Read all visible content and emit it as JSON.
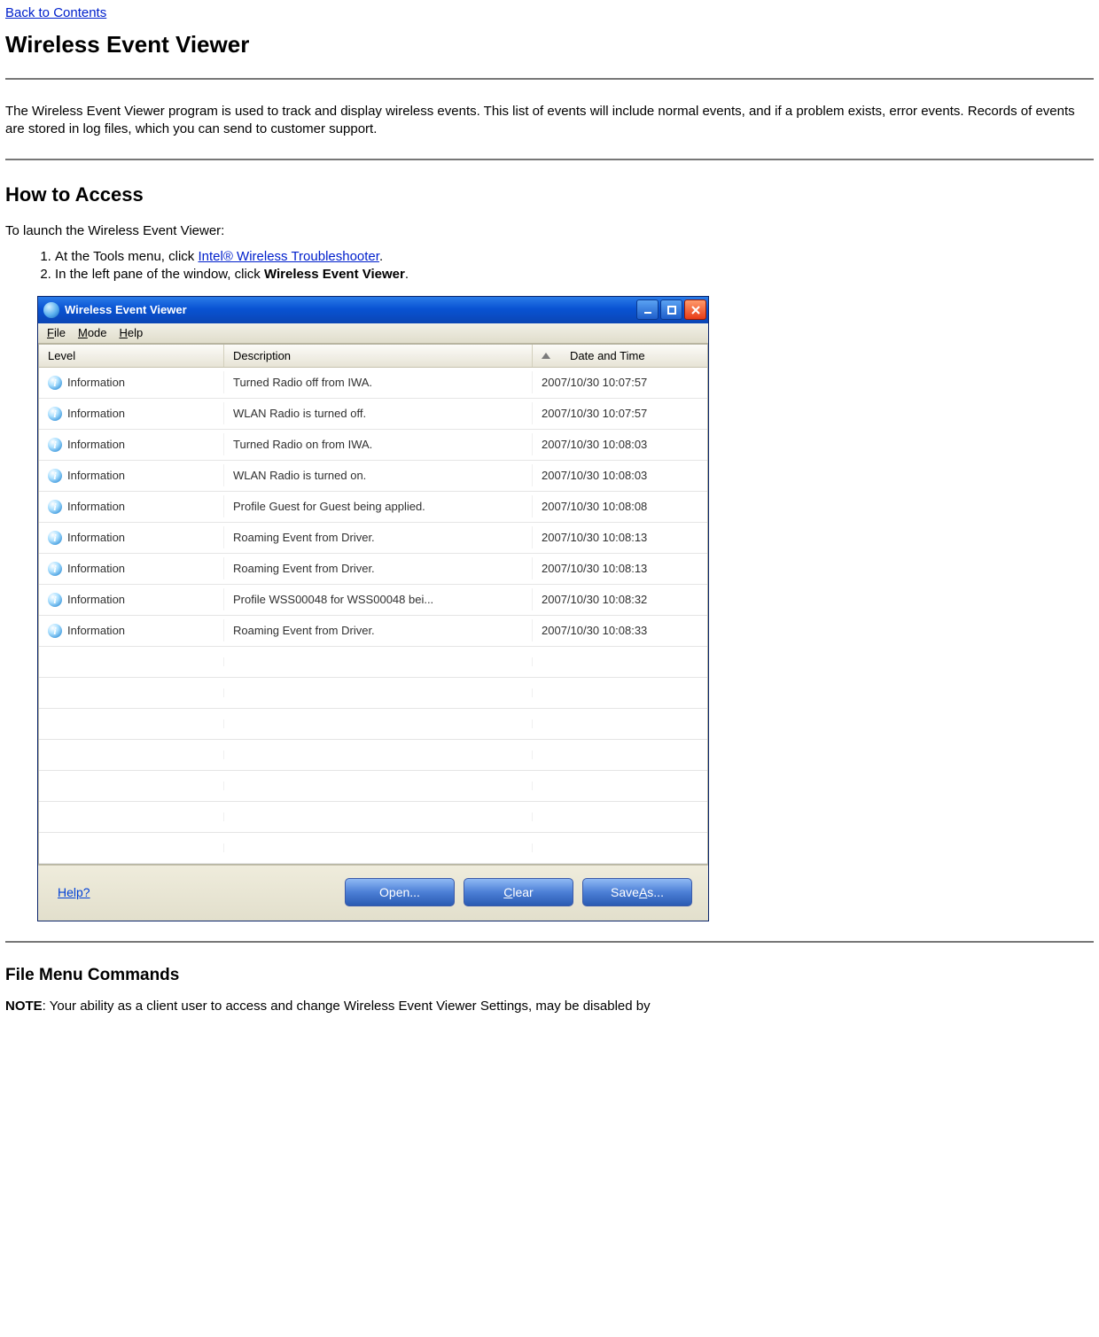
{
  "nav": {
    "back_link": "Back to Contents"
  },
  "h1": "Wireless Event Viewer",
  "intro": "The Wireless Event Viewer program is used to track and display wireless events. This list of events will include normal events, and if a problem exists, error events. Records of events are stored in log files, which you can send to customer support.",
  "access": {
    "heading": "How to Access",
    "lead": "To launch the Wireless Event Viewer:",
    "step1_pre": "At the Tools menu, click ",
    "step1_link": "Intel® Wireless Troubleshooter",
    "step1_post": ".",
    "step2_pre": "In the left pane of the window, click ",
    "step2_bold": "Wireless Event Viewer",
    "step2_post": "."
  },
  "window": {
    "title": "Wireless Event Viewer",
    "menus": {
      "file": "File",
      "mode": "Mode",
      "help": "Help"
    },
    "columns": {
      "level": "Level",
      "description": "Description",
      "date": "Date and Time"
    },
    "rows": [
      {
        "level": "Information",
        "desc": "Turned Radio off from IWA.",
        "date": "2007/10/30 10:07:57"
      },
      {
        "level": "Information",
        "desc": "WLAN Radio is turned off.",
        "date": "2007/10/30 10:07:57"
      },
      {
        "level": "Information",
        "desc": "Turned Radio on from IWA.",
        "date": "2007/10/30 10:08:03"
      },
      {
        "level": "Information",
        "desc": "WLAN Radio is turned on.",
        "date": "2007/10/30 10:08:03"
      },
      {
        "level": "Information",
        "desc": "Profile Guest for Guest being applied.",
        "date": "2007/10/30 10:08:08"
      },
      {
        "level": "Information",
        "desc": "Roaming Event from Driver.",
        "date": "2007/10/30 10:08:13"
      },
      {
        "level": "Information",
        "desc": "Roaming Event from Driver.",
        "date": "2007/10/30 10:08:13"
      },
      {
        "level": "Information",
        "desc": "Profile WSS00048 for WSS00048 bei...",
        "date": "2007/10/30 10:08:32"
      },
      {
        "level": "Information",
        "desc": "Roaming Event from Driver.",
        "date": "2007/10/30 10:08:33"
      }
    ],
    "empty_row_count": 7,
    "footer": {
      "help": "Help?",
      "open": "Open...",
      "clear": "Clear",
      "saveas": "Save As..."
    }
  },
  "filemenu": {
    "heading": "File Menu Commands",
    "note_label": "NOTE",
    "note_rest": ": Your ability as a client user to access and change Wireless Event Viewer Settings, may be disabled by"
  }
}
